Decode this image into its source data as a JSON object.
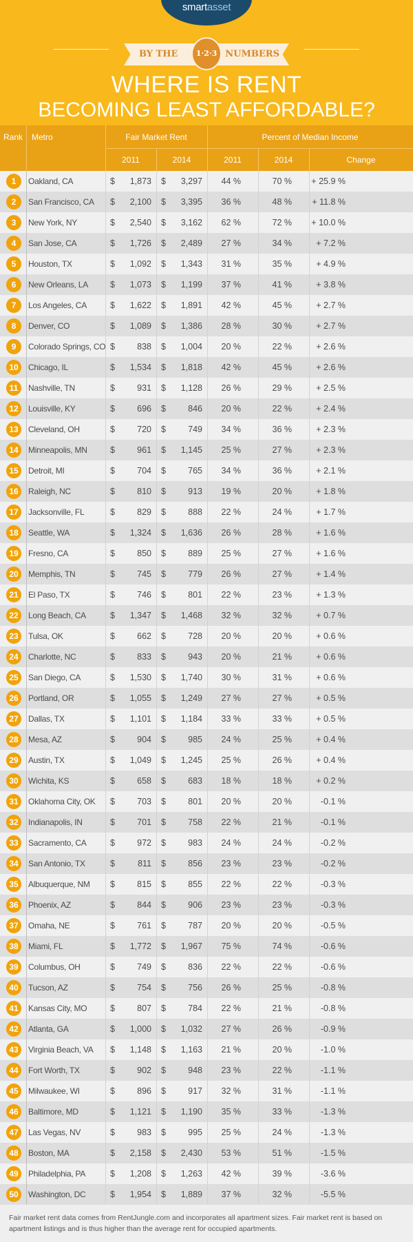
{
  "brand": {
    "logo_text_a": "smart",
    "logo_text_b": "asset",
    "color": "#1c4a6b"
  },
  "banner": {
    "left": "BY THE",
    "medal": "1·2·3",
    "right": "NUMBERS"
  },
  "title": {
    "line1": "WHERE IS RENT",
    "line2": "BECOMING LEAST AFFORDABLE?"
  },
  "colors": {
    "header_bg": "#f9b81b",
    "table_header_bg": "#e9a116",
    "badge": "#f0a30a",
    "row_light": "#f0f0f0",
    "row_dark": "#dedede"
  },
  "table": {
    "headers": {
      "rank": "Rank",
      "metro": "Metro",
      "fmr": "Fair Market Rent",
      "pmi": "Percent of Median Income",
      "y2011": "2011",
      "y2014": "2014",
      "pmi_2011": "2011",
      "pmi_2014": "2014",
      "change": "Change"
    },
    "currency": "$",
    "rows": [
      {
        "rank": "1",
        "metro": "Oakland, CA",
        "rent_2011": "1,873",
        "rent_2014": "3,297",
        "pct_2011": "44 %",
        "pct_2014": "70 %",
        "change": "+ 25.9 %"
      },
      {
        "rank": "2",
        "metro": "San Francisco, CA",
        "rent_2011": "2,100",
        "rent_2014": "3,395",
        "pct_2011": "36 %",
        "pct_2014": "48 %",
        "change": "+ 11.8 %"
      },
      {
        "rank": "3",
        "metro": "New York, NY",
        "rent_2011": "2,540",
        "rent_2014": "3,162",
        "pct_2011": "62 %",
        "pct_2014": "72 %",
        "change": "+ 10.0 %"
      },
      {
        "rank": "4",
        "metro": "San Jose, CA",
        "rent_2011": "1,726",
        "rent_2014": "2,489",
        "pct_2011": "27 %",
        "pct_2014": "34 %",
        "change": "+ 7.2 %"
      },
      {
        "rank": "5",
        "metro": "Houston, TX",
        "rent_2011": "1,092",
        "rent_2014": "1,343",
        "pct_2011": "31 %",
        "pct_2014": "35 %",
        "change": "+ 4.9 %"
      },
      {
        "rank": "6",
        "metro": "New Orleans, LA",
        "rent_2011": "1,073",
        "rent_2014": "1,199",
        "pct_2011": "37 %",
        "pct_2014": "41 %",
        "change": "+ 3.8 %"
      },
      {
        "rank": "7",
        "metro": "Los Angeles, CA",
        "rent_2011": "1,622",
        "rent_2014": "1,891",
        "pct_2011": "42 %",
        "pct_2014": "45 %",
        "change": "+ 2.7 %"
      },
      {
        "rank": "8",
        "metro": "Denver, CO",
        "rent_2011": "1,089",
        "rent_2014": "1,386",
        "pct_2011": "28 %",
        "pct_2014": "30 %",
        "change": "+ 2.7 %"
      },
      {
        "rank": "9",
        "metro": "Colorado Springs, CO",
        "rent_2011": "838",
        "rent_2014": "1,004",
        "pct_2011": "20 %",
        "pct_2014": "22 %",
        "change": "+ 2.6 %"
      },
      {
        "rank": "10",
        "metro": "Chicago, IL",
        "rent_2011": "1,534",
        "rent_2014": "1,818",
        "pct_2011": "42 %",
        "pct_2014": "45 %",
        "change": "+ 2.6 %"
      },
      {
        "rank": "11",
        "metro": "Nashville, TN",
        "rent_2011": "931",
        "rent_2014": "1,128",
        "pct_2011": "26 %",
        "pct_2014": "29 %",
        "change": "+ 2.5 %"
      },
      {
        "rank": "12",
        "metro": "Louisville, KY",
        "rent_2011": "696",
        "rent_2014": "846",
        "pct_2011": "20 %",
        "pct_2014": "22 %",
        "change": "+ 2.4 %"
      },
      {
        "rank": "13",
        "metro": "Cleveland, OH",
        "rent_2011": "720",
        "rent_2014": "749",
        "pct_2011": "34 %",
        "pct_2014": "36 %",
        "change": "+ 2.3 %"
      },
      {
        "rank": "14",
        "metro": "Minneapolis, MN",
        "rent_2011": "961",
        "rent_2014": "1,145",
        "pct_2011": "25 %",
        "pct_2014": "27 %",
        "change": "+ 2.3 %"
      },
      {
        "rank": "15",
        "metro": "Detroit, MI",
        "rent_2011": "704",
        "rent_2014": "765",
        "pct_2011": "34 %",
        "pct_2014": "36 %",
        "change": "+ 2.1 %"
      },
      {
        "rank": "16",
        "metro": "Raleigh, NC",
        "rent_2011": "810",
        "rent_2014": "913",
        "pct_2011": "19 %",
        "pct_2014": "20 %",
        "change": "+ 1.8 %"
      },
      {
        "rank": "17",
        "metro": "Jacksonville, FL",
        "rent_2011": "829",
        "rent_2014": "888",
        "pct_2011": "22 %",
        "pct_2014": "24 %",
        "change": "+ 1.7 %"
      },
      {
        "rank": "18",
        "metro": "Seattle, WA",
        "rent_2011": "1,324",
        "rent_2014": "1,636",
        "pct_2011": "26 %",
        "pct_2014": "28 %",
        "change": "+ 1.6 %"
      },
      {
        "rank": "19",
        "metro": "Fresno, CA",
        "rent_2011": "850",
        "rent_2014": "889",
        "pct_2011": "25 %",
        "pct_2014": "27 %",
        "change": "+ 1.6 %"
      },
      {
        "rank": "20",
        "metro": "Memphis, TN",
        "rent_2011": "745",
        "rent_2014": "779",
        "pct_2011": "26 %",
        "pct_2014": "27 %",
        "change": "+ 1.4 %"
      },
      {
        "rank": "21",
        "metro": "El Paso, TX",
        "rent_2011": "746",
        "rent_2014": "801",
        "pct_2011": "22 %",
        "pct_2014": "23 %",
        "change": "+ 1.3 %"
      },
      {
        "rank": "22",
        "metro": "Long Beach, CA",
        "rent_2011": "1,347",
        "rent_2014": "1,468",
        "pct_2011": "32 %",
        "pct_2014": "32 %",
        "change": "+ 0.7 %"
      },
      {
        "rank": "23",
        "metro": "Tulsa, OK",
        "rent_2011": "662",
        "rent_2014": "728",
        "pct_2011": "20 %",
        "pct_2014": "20 %",
        "change": "+ 0.6 %"
      },
      {
        "rank": "24",
        "metro": "Charlotte, NC",
        "rent_2011": "833",
        "rent_2014": "943",
        "pct_2011": "20 %",
        "pct_2014": "21 %",
        "change": "+ 0.6 %"
      },
      {
        "rank": "25",
        "metro": "San Diego, CA",
        "rent_2011": "1,530",
        "rent_2014": "1,740",
        "pct_2011": "30 %",
        "pct_2014": "31 %",
        "change": "+ 0.6 %"
      },
      {
        "rank": "26",
        "metro": "Portland, OR",
        "rent_2011": "1,055",
        "rent_2014": "1,249",
        "pct_2011": "27 %",
        "pct_2014": "27 %",
        "change": "+ 0.5 %"
      },
      {
        "rank": "27",
        "metro": "Dallas, TX",
        "rent_2011": "1,101",
        "rent_2014": "1,184",
        "pct_2011": "33 %",
        "pct_2014": "33 %",
        "change": "+ 0.5 %"
      },
      {
        "rank": "28",
        "metro": "Mesa, AZ",
        "rent_2011": "904",
        "rent_2014": "985",
        "pct_2011": "24 %",
        "pct_2014": "25 %",
        "change": "+ 0.4 %"
      },
      {
        "rank": "29",
        "metro": "Austin, TX",
        "rent_2011": "1,049",
        "rent_2014": "1,245",
        "pct_2011": "25 %",
        "pct_2014": "26 %",
        "change": "+ 0.4 %"
      },
      {
        "rank": "30",
        "metro": "Wichita, KS",
        "rent_2011": "658",
        "rent_2014": "683",
        "pct_2011": "18 %",
        "pct_2014": "18 %",
        "change": "+ 0.2 %"
      },
      {
        "rank": "31",
        "metro": "Oklahoma City, OK",
        "rent_2011": "703",
        "rent_2014": "801",
        "pct_2011": "20 %",
        "pct_2014": "20 %",
        "change": "-0.1 %"
      },
      {
        "rank": "32",
        "metro": "Indianapolis, IN",
        "rent_2011": "701",
        "rent_2014": "758",
        "pct_2011": "22 %",
        "pct_2014": "21 %",
        "change": "-0.1 %"
      },
      {
        "rank": "33",
        "metro": "Sacramento, CA",
        "rent_2011": "972",
        "rent_2014": "983",
        "pct_2011": "24 %",
        "pct_2014": "24 %",
        "change": "-0.2 %"
      },
      {
        "rank": "34",
        "metro": "San Antonio, TX",
        "rent_2011": "811",
        "rent_2014": "856",
        "pct_2011": "23 %",
        "pct_2014": "23 %",
        "change": "-0.2 %"
      },
      {
        "rank": "35",
        "metro": "Albuquerque, NM",
        "rent_2011": "815",
        "rent_2014": "855",
        "pct_2011": "22 %",
        "pct_2014": "22 %",
        "change": "-0.3 %"
      },
      {
        "rank": "36",
        "metro": "Phoenix, AZ",
        "rent_2011": "844",
        "rent_2014": "906",
        "pct_2011": "23 %",
        "pct_2014": "23 %",
        "change": "-0.3 %"
      },
      {
        "rank": "37",
        "metro": "Omaha, NE",
        "rent_2011": "761",
        "rent_2014": "787",
        "pct_2011": "20 %",
        "pct_2014": "20 %",
        "change": "-0.5 %"
      },
      {
        "rank": "38",
        "metro": "Miami, FL",
        "rent_2011": "1,772",
        "rent_2014": "1,967",
        "pct_2011": "75 %",
        "pct_2014": "74 %",
        "change": "-0.6 %"
      },
      {
        "rank": "39",
        "metro": "Columbus, OH",
        "rent_2011": "749",
        "rent_2014": "836",
        "pct_2011": "22 %",
        "pct_2014": "22 %",
        "change": "-0.6 %"
      },
      {
        "rank": "40",
        "metro": "Tucson, AZ",
        "rent_2011": "754",
        "rent_2014": "756",
        "pct_2011": "26 %",
        "pct_2014": "25 %",
        "change": "-0.8 %"
      },
      {
        "rank": "41",
        "metro": "Kansas City, MO",
        "rent_2011": "807",
        "rent_2014": "784",
        "pct_2011": "22 %",
        "pct_2014": "21 %",
        "change": "-0.8 %"
      },
      {
        "rank": "42",
        "metro": "Atlanta, GA",
        "rent_2011": "1,000",
        "rent_2014": "1,032",
        "pct_2011": "27 %",
        "pct_2014": "26 %",
        "change": "-0.9 %"
      },
      {
        "rank": "43",
        "metro": "Virginia Beach, VA",
        "rent_2011": "1,148",
        "rent_2014": "1,163",
        "pct_2011": "21 %",
        "pct_2014": "20 %",
        "change": "-1.0 %"
      },
      {
        "rank": "44",
        "metro": "Fort Worth, TX",
        "rent_2011": "902",
        "rent_2014": "948",
        "pct_2011": "23 %",
        "pct_2014": "22 %",
        "change": "-1.1 %"
      },
      {
        "rank": "45",
        "metro": "Milwaukee, WI",
        "rent_2011": "896",
        "rent_2014": "917",
        "pct_2011": "32 %",
        "pct_2014": "31 %",
        "change": "-1.1 %"
      },
      {
        "rank": "46",
        "metro": "Baltimore, MD",
        "rent_2011": "1,121",
        "rent_2014": "1,190",
        "pct_2011": "35 %",
        "pct_2014": "33 %",
        "change": "-1.3 %"
      },
      {
        "rank": "47",
        "metro": "Las Vegas, NV",
        "rent_2011": "983",
        "rent_2014": "995",
        "pct_2011": "25 %",
        "pct_2014": "24 %",
        "change": "-1.3 %"
      },
      {
        "rank": "48",
        "metro": "Boston, MA",
        "rent_2011": "2,158",
        "rent_2014": "2,430",
        "pct_2011": "53 %",
        "pct_2014": "51 %",
        "change": "-1.5 %"
      },
      {
        "rank": "49",
        "metro": "Philadelphia, PA",
        "rent_2011": "1,208",
        "rent_2014": "1,263",
        "pct_2011": "42 %",
        "pct_2014": "39 %",
        "change": "-3.6 %"
      },
      {
        "rank": "50",
        "metro": "Washington, DC",
        "rent_2011": "1,954",
        "rent_2014": "1,889",
        "pct_2011": "37 %",
        "pct_2014": "32 %",
        "change": "-5.5 %"
      }
    ]
  },
  "footnote": "Fair market rent data comes from RentJungle.com and incorporates all apartment sizes. Fair market rent is based on apartment listings and is thus higher than the average rent for occupied apartments."
}
